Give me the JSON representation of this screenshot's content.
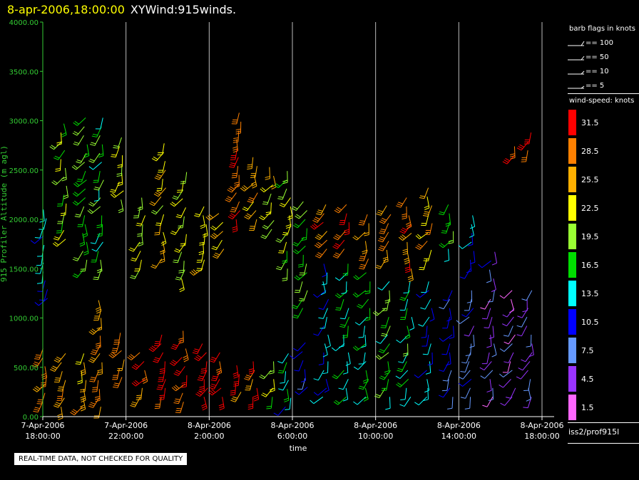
{
  "header": {
    "timestamp": "8-apr-2006,18:00:00",
    "name": "XYWind:915winds."
  },
  "qc_notice": "REAL-TIME DATA, NOT CHECKED FOR QUALITY",
  "legend": {
    "barb_title": "barb flags in knots",
    "barbs": [
      "== 100",
      "== 50",
      "== 10",
      "== 5"
    ],
    "speed_title": "wind-speed: knots",
    "bins": [
      {
        "label": "31.5",
        "color": "#ff0000"
      },
      {
        "label": "28.5",
        "color": "#ff8000"
      },
      {
        "label": "25.5",
        "color": "#ffb000"
      },
      {
        "label": "22.5",
        "color": "#ffff00"
      },
      {
        "label": "19.5",
        "color": "#99ff33"
      },
      {
        "label": "16.5",
        "color": "#00dd00"
      },
      {
        "label": "13.5",
        "color": "#00ffff"
      },
      {
        "label": "10.5",
        "color": "#0000ff"
      },
      {
        "label": "7.5",
        "color": "#6699ff"
      },
      {
        "label": "4.5",
        "color": "#9933ff"
      },
      {
        "label": "1.5",
        "color": "#ff66ff"
      }
    ],
    "source": "iss2/prof915l"
  },
  "chart_data": {
    "type": "wind-barb time-height",
    "ylabel": "915 Profiler Altitude (m agl)",
    "xlabel": "time",
    "ylim": [
      0,
      4000
    ],
    "yticks": [
      "0.00",
      "500.00",
      "1000.00",
      "1500.00",
      "2000.00",
      "2500.00",
      "3000.00",
      "3500.00",
      "4000.00"
    ],
    "xlim_hours": [
      0,
      24
    ],
    "xticks": [
      {
        "date": "7-Apr-2006",
        "time": "18:00:00",
        "h": 0
      },
      {
        "date": "7-Apr-2006",
        "time": "22:00:00",
        "h": 4
      },
      {
        "date": "8-Apr-2006",
        "time": "2:00:00",
        "h": 8
      },
      {
        "date": "8-Apr-2006",
        "time": "6:00:00",
        "h": 12
      },
      {
        "date": "8-Apr-2006",
        "time": "10:00:00",
        "h": 16
      },
      {
        "date": "8-Apr-2006",
        "time": "14:00:00",
        "h": 20
      },
      {
        "date": "8-Apr-2006",
        "time": "18:00:00",
        "h": 24
      }
    ],
    "grid": true,
    "profiles": [
      {
        "t": 0.1,
        "low": [
          150,
          700
        ],
        "high": [
          1200,
          2100
        ],
        "s_low": 29,
        "s_high": 12
      },
      {
        "t": 1.0,
        "low": [
          100,
          700
        ],
        "high": [
          1800,
          3000
        ],
        "s_low": 27,
        "s_high": 20
      },
      {
        "t": 2.0,
        "low": [
          100,
          700
        ],
        "high": [
          1500,
          3100
        ],
        "s_low": 26,
        "s_high": 18
      },
      {
        "t": 2.8,
        "low": [
          100,
          1200
        ],
        "high": [
          1500,
          3100
        ],
        "s_low": 27,
        "s_high": 17
      },
      {
        "t": 3.8,
        "low": [
          400,
          900
        ],
        "high": [
          2200,
          2900
        ],
        "s_low": 27,
        "s_high": 22
      },
      {
        "t": 4.8,
        "low": [
          200,
          700
        ],
        "high": [
          1500,
          2300
        ],
        "s_low": 29,
        "s_high": 21
      },
      {
        "t": 5.8,
        "low": [
          200,
          900
        ],
        "high": [
          1600,
          2800
        ],
        "s_low": 32,
        "s_high": 23
      },
      {
        "t": 6.8,
        "low": [
          150,
          900
        ],
        "high": [
          1400,
          2500
        ],
        "s_low": 32,
        "s_high": 21
      },
      {
        "t": 7.8,
        "low": [
          200,
          800
        ],
        "high": [
          1500,
          2200
        ],
        "s_low": 32,
        "s_high": 24
      },
      {
        "t": 8.6,
        "low": [
          200,
          700
        ],
        "high": [
          1700,
          2100
        ],
        "s_low": 30,
        "s_high": 24
      },
      {
        "t": 9.4,
        "low": [
          250,
          600
        ],
        "high": [
          2000,
          3100
        ],
        "s_low": 29,
        "s_high": 30
      },
      {
        "t": 10.2,
        "low": [
          200,
          600
        ],
        "high": [
          2000,
          2700
        ],
        "s_low": 28,
        "s_high": 25
      },
      {
        "t": 11.0,
        "low": [
          200,
          600
        ],
        "high": [
          1900,
          2600
        ],
        "s_low": 20,
        "s_high": 22
      },
      {
        "t": 11.8,
        "low": [
          100,
          700
        ],
        "high": [
          1500,
          2550
        ],
        "s_low": 14,
        "s_high": 20
      },
      {
        "t": 12.6,
        "low": [
          300,
          800
        ],
        "high": [
          1100,
          2200
        ],
        "s_low": 11,
        "s_high": 18
      },
      {
        "t": 13.6,
        "low": [
          200,
          1600
        ],
        "high": [
          1700,
          2200
        ],
        "s_low": 12,
        "s_high": 28
      },
      {
        "t": 14.6,
        "low": [
          200,
          1600
        ],
        "high": [
          1700,
          2200
        ],
        "s_low": 15,
        "s_high": 29
      },
      {
        "t": 15.6,
        "low": [
          200,
          1500
        ],
        "high": [
          1600,
          2100
        ],
        "s_low": 16,
        "s_high": 27
      },
      {
        "t": 16.6,
        "low": [
          200,
          1400
        ],
        "high": [
          1600,
          2200
        ],
        "s_low": 17,
        "s_high": 27
      },
      {
        "t": 17.6,
        "low": [
          200,
          1400
        ],
        "high": [
          1500,
          2300
        ],
        "s_low": 16,
        "s_high": 28
      },
      {
        "t": 18.6,
        "low": [
          200,
          1400
        ],
        "high": [
          1600,
          2400
        ],
        "s_low": 12,
        "s_high": 25
      },
      {
        "t": 19.6,
        "low": [
          200,
          1300
        ],
        "high": [
          1700,
          2200
        ],
        "s_low": 10,
        "s_high": 17
      },
      {
        "t": 20.6,
        "low": [
          200,
          1300
        ],
        "high": [
          1500,
          2100
        ],
        "s_low": 8,
        "s_high": 12
      },
      {
        "t": 21.6,
        "low": [
          200,
          1300
        ],
        "high": [
          1400,
          1700
        ],
        "s_low": 5,
        "s_high": 8
      },
      {
        "t": 22.6,
        "low": [
          200,
          1300
        ],
        "high": [
          2650,
          2800
        ],
        "s_low": 4,
        "s_high": 32
      },
      {
        "t": 23.4,
        "low": [
          200,
          1300
        ],
        "high": [
          2700,
          2900
        ],
        "s_low": 6,
        "s_high": 31
      }
    ]
  }
}
